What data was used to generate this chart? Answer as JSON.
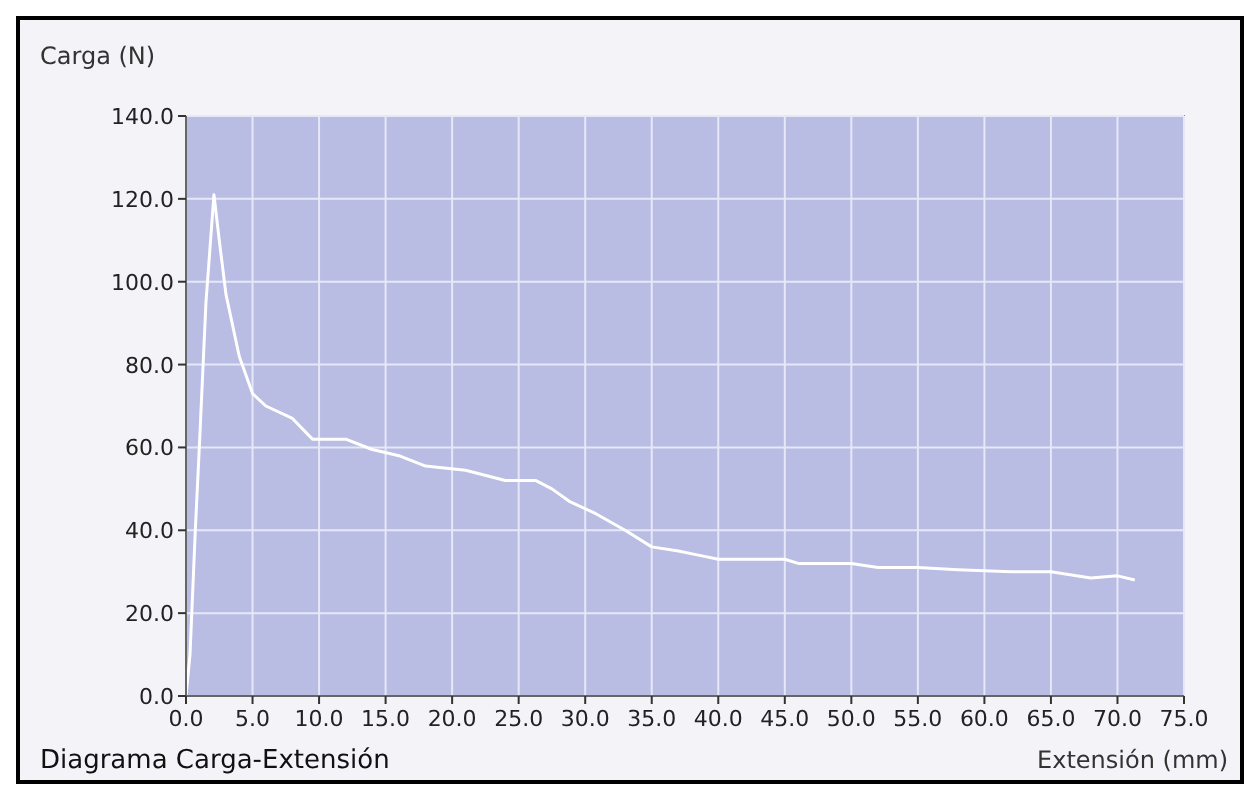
{
  "chart_data": {
    "type": "line",
    "title": "Diagrama Carga-Extensión",
    "xlabel": "Extensión (mm)",
    "ylabel": "Carga (N)",
    "xlim": [
      0,
      75
    ],
    "ylim": [
      0,
      140
    ],
    "xticks": [
      {
        "value": 0,
        "label": "0.0"
      },
      {
        "value": 5,
        "label": "5.0"
      },
      {
        "value": 10,
        "label": "10.0"
      },
      {
        "value": 15,
        "label": "15.0"
      },
      {
        "value": 20,
        "label": "20.0"
      },
      {
        "value": 25,
        "label": "25.0"
      },
      {
        "value": 30,
        "label": "30.0"
      },
      {
        "value": 35,
        "label": "35.0"
      },
      {
        "value": 40,
        "label": "40.0"
      },
      {
        "value": 45,
        "label": "45.0"
      },
      {
        "value": 50,
        "label": "50.0"
      },
      {
        "value": 55,
        "label": "55.0"
      },
      {
        "value": 60,
        "label": "60.0"
      },
      {
        "value": 65,
        "label": "65.0"
      },
      {
        "value": 70,
        "label": "70.0"
      },
      {
        "value": 75,
        "label": "75.0"
      }
    ],
    "yticks": [
      {
        "value": 0,
        "label": "0.0"
      },
      {
        "value": 20,
        "label": "20.0"
      },
      {
        "value": 40,
        "label": "40.0"
      },
      {
        "value": 60,
        "label": "60.0"
      },
      {
        "value": 80,
        "label": "80.0"
      },
      {
        "value": 100,
        "label": "100.0"
      },
      {
        "value": 120,
        "label": "120.0"
      },
      {
        "value": 140,
        "label": "140.0"
      }
    ],
    "grid": true,
    "marker": "none",
    "line_style": "solid",
    "series": [
      {
        "color": "#ffffff",
        "x": [
          0,
          0.3,
          0.7,
          1,
          1.5,
          2.1,
          2.5,
          3,
          4,
          5,
          6,
          8,
          9.5,
          12,
          14,
          16,
          18,
          21,
          24,
          26.3,
          27.5,
          28.8,
          30.8,
          33,
          35,
          37,
          38.5,
          40,
          42,
          45,
          46,
          48,
          50,
          52,
          55,
          58,
          62,
          65,
          68,
          70,
          71.3
        ],
        "values": [
          0,
          10,
          40,
          60,
          95,
          121,
          110,
          97,
          82,
          73,
          70,
          67,
          62,
          62,
          59.5,
          58,
          55.5,
          54.5,
          52,
          52,
          50,
          47,
          44,
          40,
          36,
          35,
          34,
          33,
          33,
          33,
          32,
          32,
          32,
          31,
          31,
          30.5,
          30,
          30,
          28.5,
          29,
          28
        ]
      }
    ]
  }
}
